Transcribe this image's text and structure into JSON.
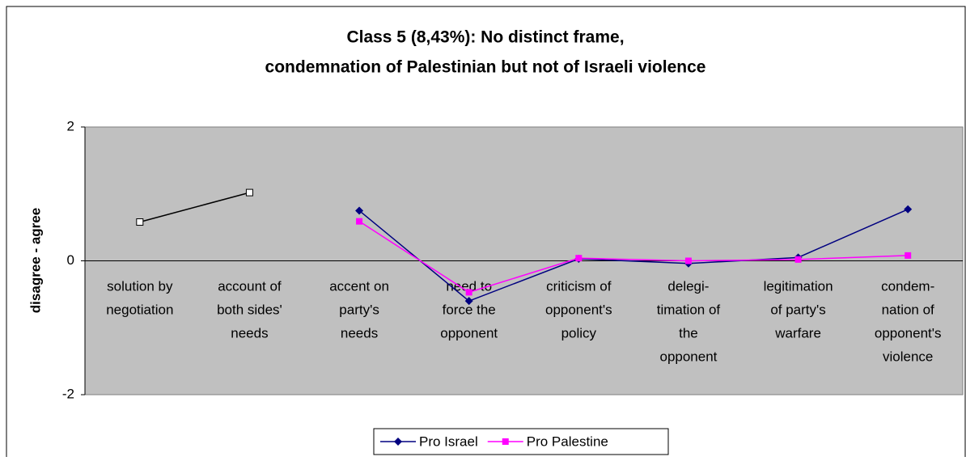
{
  "chart_data": {
    "type": "line",
    "title": [
      "Class 5 (8,43%): No distinct frame,",
      "condemnation of Palestinian but not of Israeli violence"
    ],
    "ylabel": "disagree - agree",
    "categories": [
      [
        "solution by",
        "negotiation"
      ],
      [
        "account of",
        "both sides'",
        "needs"
      ],
      [
        "accent on",
        "party's",
        "needs"
      ],
      [
        "need to",
        "force the",
        "opponent"
      ],
      [
        "criticism of",
        "opponent's",
        "policy"
      ],
      [
        "delegi-",
        "timation of",
        "the",
        "opponent"
      ],
      [
        "legitimation",
        "of party's",
        "warfare"
      ],
      [
        "condem-",
        "nation of",
        "opponent's",
        "violence"
      ]
    ],
    "series": [
      {
        "color": "#000000",
        "marker": "square-open",
        "values": [
          0.58,
          1.02,
          null,
          null,
          null,
          null,
          null,
          null
        ]
      },
      {
        "name": "Pro Israel",
        "color": "#000080",
        "marker": "diamond",
        "values": [
          null,
          null,
          0.75,
          -0.6,
          0.03,
          -0.04,
          0.05,
          0.77
        ]
      },
      {
        "name": "Pro Palestine",
        "color": "#ff00ff",
        "marker": "square",
        "values": [
          null,
          null,
          0.59,
          -0.47,
          0.04,
          0.0,
          0.02,
          0.08
        ]
      }
    ],
    "ylim": [
      -2,
      2
    ],
    "yticks": [
      -2,
      0,
      2
    ],
    "grid": false,
    "legend": "bottom"
  }
}
